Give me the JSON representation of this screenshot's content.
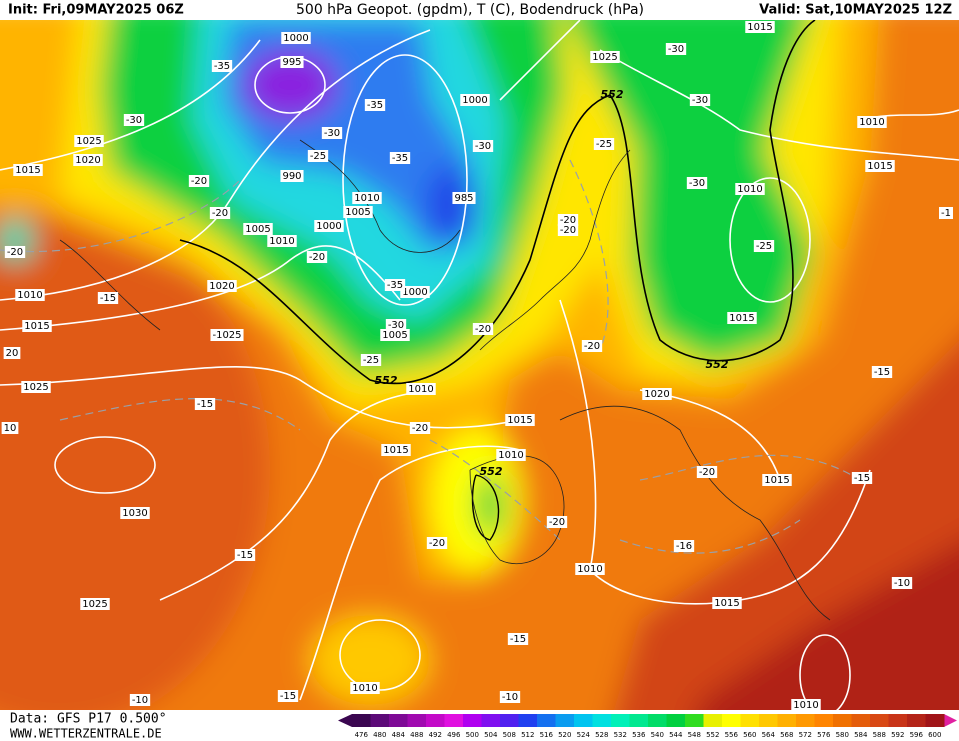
{
  "header": {
    "init": "Init: Fri,09MAY2025 06Z",
    "title": "500 hPa Geopot. (gpdm), T (C), Bodendruck (hPa)",
    "valid": "Valid: Sat,10MAY2025 12Z"
  },
  "footer": {
    "data": "Data: GFS P17 0.500°",
    "site": "WWW.WETTERZENTRALE.DE"
  },
  "legend": {
    "values": [
      476,
      480,
      484,
      488,
      492,
      496,
      500,
      504,
      508,
      512,
      516,
      520,
      524,
      528,
      532,
      536,
      540,
      544,
      548,
      552,
      556,
      560,
      564,
      568,
      572,
      576,
      580,
      584,
      588,
      592,
      596,
      600
    ],
    "colors": [
      "#3a0650",
      "#5c0a78",
      "#7e0a96",
      "#a00ab0",
      "#c30ac8",
      "#e010e0",
      "#b000f0",
      "#8010f0",
      "#5020f0",
      "#2040f0",
      "#1470f0",
      "#0a9cf0",
      "#00c4f0",
      "#00e0e0",
      "#00f0b8",
      "#00e890",
      "#00dc68",
      "#00d040",
      "#30dc20",
      "#e8f000",
      "#ffff00",
      "#ffe000",
      "#ffc800",
      "#ffb000",
      "#ff9800",
      "#ff8400",
      "#f07000",
      "#e45c0a",
      "#d84814",
      "#c83418",
      "#b42418",
      "#a01418"
    ]
  },
  "isobar_labels": [
    "1015",
    "-30",
    "1025",
    "-30",
    "1010",
    "-25",
    "1015",
    "-30",
    "1010",
    "-20",
    "-20",
    "-25",
    "1015",
    "-20",
    "1020",
    "-15",
    "-20",
    "1015",
    "-15",
    "-16",
    "-20",
    "1010",
    "1015",
    "-10",
    "1015",
    "1010",
    "-20",
    "-20",
    "1015",
    "1010",
    "-25",
    "1005",
    "-30",
    "-20",
    "1000",
    "-35",
    "1000",
    "1005",
    "1010",
    "985",
    "-30",
    "1000",
    "-35",
    "-35",
    "-30",
    "-25",
    "990",
    "1000",
    "995",
    "-35",
    "-30",
    "1025",
    "1020",
    "1015",
    "-20",
    "-20",
    "1005",
    "1010",
    "-20",
    "-20",
    "1010",
    "-15",
    "1020",
    "1015",
    "-1025",
    "20",
    "1025",
    "-15",
    "10",
    "1030",
    "-15",
    "1025",
    "-15",
    "1010",
    "-15",
    "-10",
    "-10",
    "1010",
    "-1"
  ],
  "geopotential_labels": [
    "552",
    "552",
    "552",
    "552"
  ]
}
